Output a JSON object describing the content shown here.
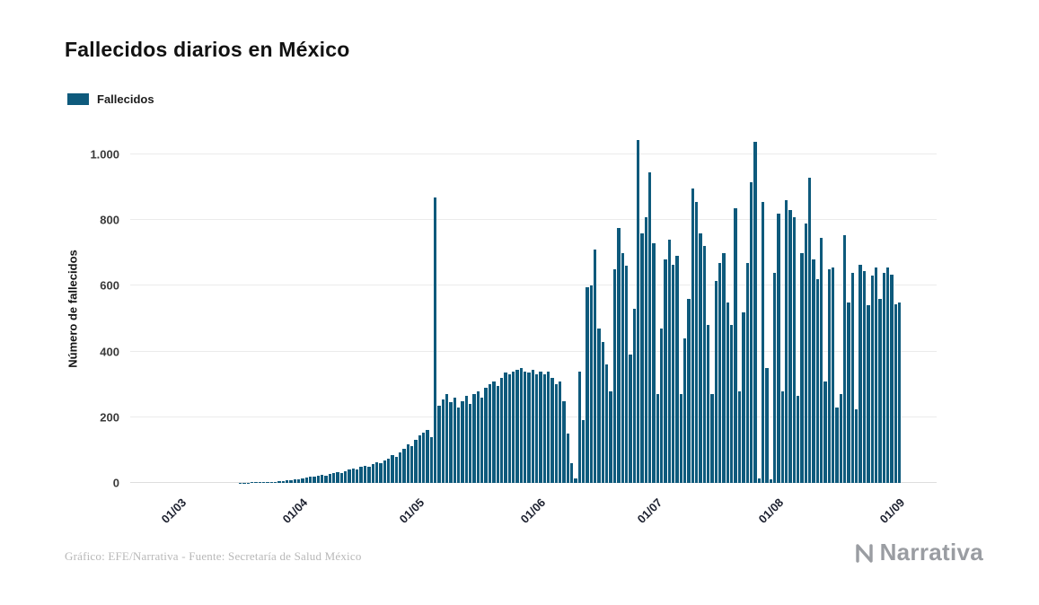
{
  "title": "Fallecidos diarios en México",
  "legend": {
    "label": "Fallecidos",
    "color": "#0e5a7c"
  },
  "y_axis": {
    "label": "Número de fallecidos",
    "ticks": [
      "0",
      "200",
      "400",
      "600",
      "800",
      "1.000"
    ],
    "tick_values": [
      0,
      200,
      400,
      600,
      800,
      1000
    ]
  },
  "x_axis": {
    "total_days": 184,
    "ticks": [
      {
        "label": "01/03",
        "day": 0
      },
      {
        "label": "01/04",
        "day": 31
      },
      {
        "label": "01/05",
        "day": 61
      },
      {
        "label": "01/06",
        "day": 92
      },
      {
        "label": "01/07",
        "day": 122
      },
      {
        "label": "01/08",
        "day": 153
      },
      {
        "label": "01/09",
        "day": 184
      }
    ]
  },
  "footer": {
    "credit": "Gráfico: EFE/Narrativa - Fuente: Secretaría de Salud México",
    "brand": "Narrativa"
  },
  "chart_data": {
    "type": "bar",
    "title": "Fallecidos diarios en México",
    "xlabel": "",
    "ylabel": "Número de fallecidos",
    "ylim": [
      0,
      1060
    ],
    "x_range_labels": [
      "01/03",
      "01/09"
    ],
    "grid": true,
    "legend_position": "top-left",
    "bar_color": "#0e5a7c",
    "series": [
      {
        "name": "Fallecidos",
        "values": [
          0,
          0,
          0,
          0,
          0,
          0,
          0,
          0,
          0,
          0,
          0,
          0,
          0,
          0,
          1,
          1,
          1,
          2,
          2,
          2,
          3,
          3,
          4,
          4,
          5,
          6,
          7,
          8,
          10,
          12,
          14,
          16,
          18,
          20,
          22,
          25,
          23,
          28,
          30,
          33,
          31,
          36,
          40,
          44,
          42,
          48,
          52,
          50,
          57,
          62,
          60,
          68,
          75,
          85,
          80,
          93,
          105,
          117,
          112,
          130,
          145,
          152,
          160,
          140,
          870,
          235,
          255,
          270,
          245,
          260,
          230,
          250,
          265,
          240,
          270,
          280,
          260,
          290,
          300,
          310,
          295,
          320,
          335,
          330,
          340,
          345,
          350,
          340,
          335,
          345,
          330,
          340,
          330,
          340,
          320,
          300,
          310,
          250,
          150,
          60,
          15,
          340,
          190,
          595,
          600,
          710,
          470,
          430,
          360,
          280,
          650,
          775,
          700,
          660,
          390,
          530,
          1045,
          760,
          810,
          945,
          730,
          270,
          470,
          680,
          740,
          665,
          690,
          270,
          440,
          560,
          895,
          855,
          760,
          720,
          480,
          270,
          615,
          670,
          700,
          550,
          480,
          835,
          280,
          520,
          670,
          915,
          1037,
          15,
          855,
          350,
          10,
          640,
          820,
          280,
          860,
          830,
          810,
          265,
          700,
          790,
          930,
          680,
          620,
          745,
          310,
          650,
          655,
          230,
          270,
          755,
          550,
          640,
          225,
          665,
          645,
          540,
          630,
          655,
          560,
          640,
          655,
          635,
          545,
          550
        ]
      }
    ]
  }
}
